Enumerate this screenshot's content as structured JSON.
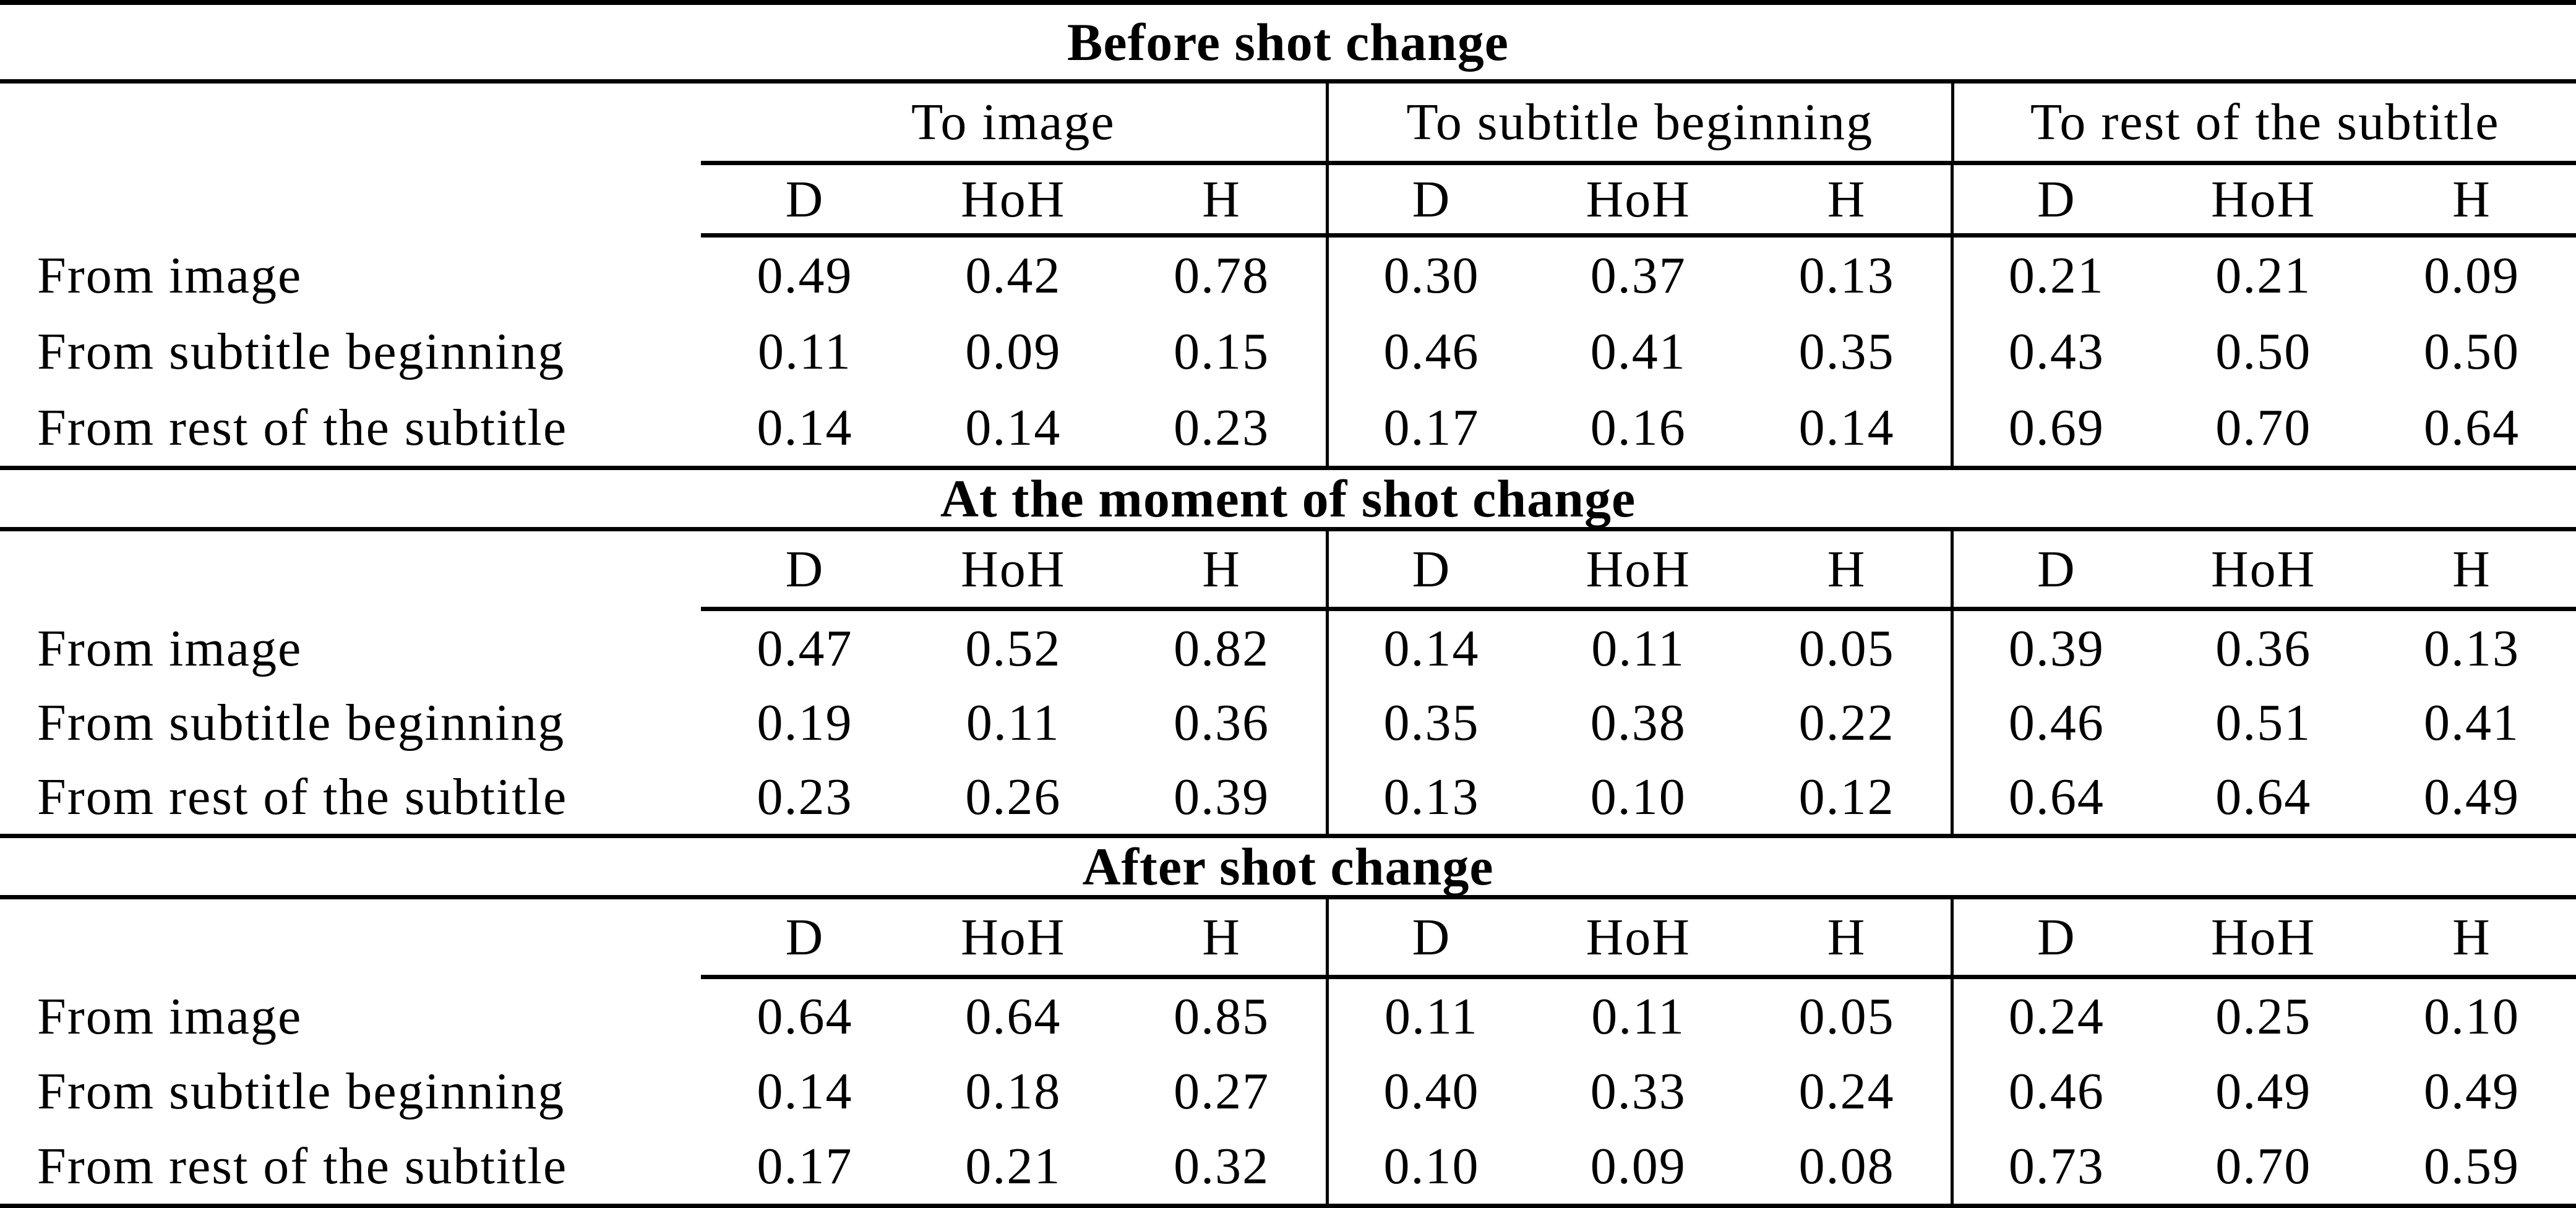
{
  "colors": {
    "background": "#ffffff",
    "text": "#000000",
    "rule_lines": "#000000"
  },
  "table": {
    "column_groups": [
      "To image",
      "To subtitle beginning",
      "To rest of the subtitle"
    ],
    "sub_headers": [
      "D",
      "HoH",
      "H"
    ],
    "row_labels": [
      "From image",
      "From subtitle beginning",
      "From rest of the subtitle"
    ],
    "sections": [
      {
        "title": "Before shot change",
        "rows": [
          {
            "label": "From image",
            "values": [
              "0.49",
              "0.42",
              "0.78",
              "0.30",
              "0.37",
              "0.13",
              "0.21",
              "0.21",
              "0.09"
            ]
          },
          {
            "label": "From subtitle beginning",
            "values": [
              "0.11",
              "0.09",
              "0.15",
              "0.46",
              "0.41",
              "0.35",
              "0.43",
              "0.50",
              "0.50"
            ]
          },
          {
            "label": "From rest of the subtitle",
            "values": [
              "0.14",
              "0.14",
              "0.23",
              "0.17",
              "0.16",
              "0.14",
              "0.69",
              "0.70",
              "0.64"
            ]
          }
        ]
      },
      {
        "title": "At the moment of shot change",
        "rows": [
          {
            "label": "From image",
            "values": [
              "0.47",
              "0.52",
              "0.82",
              "0.14",
              "0.11",
              "0.05",
              "0.39",
              "0.36",
              "0.13"
            ]
          },
          {
            "label": "From subtitle beginning",
            "values": [
              "0.19",
              "0.11",
              "0.36",
              "0.35",
              "0.38",
              "0.22",
              "0.46",
              "0.51",
              "0.41"
            ]
          },
          {
            "label": "From rest of the subtitle",
            "values": [
              "0.23",
              "0.26",
              "0.39",
              "0.13",
              "0.10",
              "0.12",
              "0.64",
              "0.64",
              "0.49"
            ]
          }
        ]
      },
      {
        "title": "After shot change",
        "rows": [
          {
            "label": "From image",
            "values": [
              "0.64",
              "0.64",
              "0.85",
              "0.11",
              "0.11",
              "0.05",
              "0.24",
              "0.25",
              "0.10"
            ]
          },
          {
            "label": "From subtitle beginning",
            "values": [
              "0.14",
              "0.18",
              "0.27",
              "0.40",
              "0.33",
              "0.24",
              "0.46",
              "0.49",
              "0.49"
            ]
          },
          {
            "label": "From rest of the subtitle",
            "values": [
              "0.17",
              "0.21",
              "0.32",
              "0.10",
              "0.09",
              "0.08",
              "0.73",
              "0.70",
              "0.59"
            ]
          }
        ]
      }
    ]
  }
}
